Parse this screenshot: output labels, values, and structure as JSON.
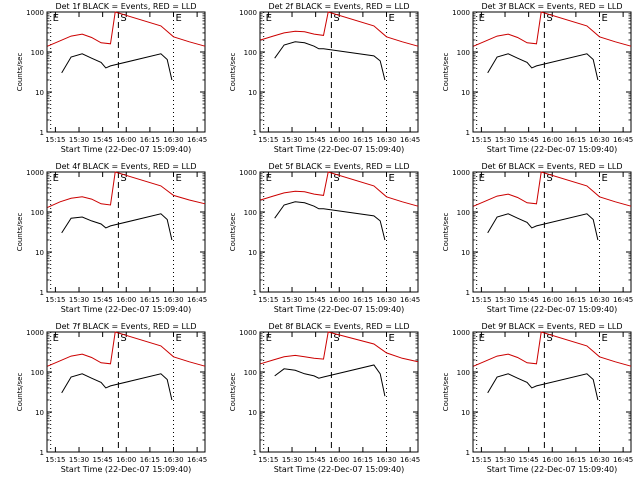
{
  "figure": {
    "start_time_label": "Start Time (22-Dec-07 15:09:40)",
    "ylabel": "Counts/sec",
    "ytick_labels": [
      "1",
      "10",
      "100",
      "1000"
    ],
    "xtick_labels": [
      "15:15",
      "15:30",
      "15:45",
      "16:00",
      "16:15",
      "16:30",
      "16:45"
    ],
    "marker_labels": [
      "E",
      "S",
      "E"
    ],
    "colors": {
      "events": "#000000",
      "lld": "#cc0000",
      "axis": "#000000",
      "background": "#ffffff"
    }
  },
  "chart_data": [
    {
      "type": "line",
      "title": "Det 1f BLACK = Events, RED = LLD",
      "xlabel": "Start Time (22-Dec-07 15:09:40)",
      "ylabel": "Counts/sec",
      "yscale": "log",
      "ylim": [
        1,
        1000
      ],
      "xlim": [
        "15:09:40",
        "16:50"
      ],
      "xticks": [
        "15:15",
        "15:30",
        "15:45",
        "16:00",
        "16:15",
        "16:30",
        "16:45"
      ],
      "markers": [
        {
          "time": "15:12",
          "label": "E",
          "style": "dotted"
        },
        {
          "time": "15:55",
          "label": "S",
          "style": "dashed"
        },
        {
          "time": "16:30",
          "label": "E",
          "style": "dotted"
        }
      ],
      "series": [
        {
          "name": "Events",
          "color": "#000000",
          "x": [
            "15:19",
            "15:25",
            "15:32",
            "15:38",
            "15:44",
            "15:47",
            "15:50",
            "16:22",
            "16:26",
            "16:29"
          ],
          "y": [
            30,
            75,
            90,
            70,
            55,
            40,
            45,
            90,
            65,
            20
          ]
        },
        {
          "name": "LLD",
          "color": "#cc0000",
          "x": [
            "15:10",
            "15:18",
            "15:25",
            "15:32",
            "15:38",
            "15:44",
            "15:50",
            "15:53",
            "16:22",
            "16:30",
            "16:40",
            "16:50"
          ],
          "y": [
            140,
            190,
            250,
            280,
            230,
            170,
            160,
            1000,
            450,
            240,
            180,
            140
          ]
        }
      ]
    },
    {
      "type": "line",
      "title": "Det 2f BLACK = Events, RED = LLD",
      "xlabel": "Start Time (22-Dec-07 15:09:40)",
      "ylabel": "Counts/sec",
      "yscale": "log",
      "ylim": [
        1,
        1000
      ],
      "xlim": [
        "15:09:40",
        "16:50"
      ],
      "xticks": [
        "15:15",
        "15:30",
        "15:45",
        "16:00",
        "16:15",
        "16:30",
        "16:45"
      ],
      "markers": [
        {
          "time": "15:12",
          "label": "E",
          "style": "dotted"
        },
        {
          "time": "15:55",
          "label": "S",
          "style": "dashed"
        },
        {
          "time": "16:30",
          "label": "E",
          "style": "dotted"
        }
      ],
      "series": [
        {
          "name": "Events",
          "color": "#000000",
          "x": [
            "15:19",
            "15:25",
            "15:32",
            "15:38",
            "15:44",
            "15:47",
            "15:50",
            "16:22",
            "16:26",
            "16:29"
          ],
          "y": [
            70,
            150,
            180,
            170,
            140,
            120,
            120,
            80,
            60,
            20
          ]
        },
        {
          "name": "LLD",
          "color": "#cc0000",
          "x": [
            "15:10",
            "15:18",
            "15:25",
            "15:32",
            "15:38",
            "15:44",
            "15:50",
            "15:53",
            "16:22",
            "16:30",
            "16:40",
            "16:50"
          ],
          "y": [
            200,
            250,
            300,
            330,
            320,
            280,
            260,
            1000,
            450,
            240,
            180,
            140
          ]
        }
      ]
    },
    {
      "type": "line",
      "title": "Det 3f BLACK = Events, RED = LLD",
      "xlabel": "Start Time (22-Dec-07 15:09:40)",
      "ylabel": "Counts/sec",
      "yscale": "log",
      "ylim": [
        1,
        1000
      ],
      "xlim": [
        "15:09:40",
        "16:50"
      ],
      "xticks": [
        "15:15",
        "15:30",
        "15:45",
        "16:00",
        "16:15",
        "16:30",
        "16:45"
      ],
      "markers": [
        {
          "time": "15:12",
          "label": "E",
          "style": "dotted"
        },
        {
          "time": "15:55",
          "label": "S",
          "style": "dashed"
        },
        {
          "time": "16:30",
          "label": "E",
          "style": "dotted"
        }
      ],
      "series": [
        {
          "name": "Events",
          "color": "#000000",
          "x": [
            "15:19",
            "15:25",
            "15:32",
            "15:38",
            "15:44",
            "15:47",
            "15:50",
            "16:22",
            "16:26",
            "16:29"
          ],
          "y": [
            30,
            75,
            90,
            70,
            55,
            40,
            45,
            90,
            65,
            20
          ]
        },
        {
          "name": "LLD",
          "color": "#cc0000",
          "x": [
            "15:10",
            "15:18",
            "15:25",
            "15:32",
            "15:38",
            "15:44",
            "15:50",
            "15:53",
            "16:22",
            "16:30",
            "16:40",
            "16:50"
          ],
          "y": [
            140,
            190,
            250,
            280,
            230,
            170,
            160,
            1000,
            450,
            240,
            180,
            140
          ]
        }
      ]
    },
    {
      "type": "line",
      "title": "Det 4f BLACK = Events, RED = LLD",
      "xlabel": "Start Time (22-Dec-07 15:09:40)",
      "ylabel": "Counts/sec",
      "yscale": "log",
      "ylim": [
        1,
        1000
      ],
      "xlim": [
        "15:09:40",
        "16:50"
      ],
      "xticks": [
        "15:15",
        "15:30",
        "15:45",
        "16:00",
        "16:15",
        "16:30",
        "16:45"
      ],
      "markers": [
        {
          "time": "15:12",
          "label": "E",
          "style": "dotted"
        },
        {
          "time": "15:55",
          "label": "S",
          "style": "dashed"
        },
        {
          "time": "16:30",
          "label": "E",
          "style": "dotted"
        }
      ],
      "series": [
        {
          "name": "Events",
          "color": "#000000",
          "x": [
            "15:19",
            "15:25",
            "15:32",
            "15:38",
            "15:44",
            "15:47",
            "15:50",
            "16:22",
            "16:26",
            "16:29"
          ],
          "y": [
            30,
            70,
            75,
            60,
            50,
            40,
            45,
            90,
            65,
            20
          ]
        },
        {
          "name": "LLD",
          "color": "#cc0000",
          "x": [
            "15:10",
            "15:18",
            "15:25",
            "15:32",
            "15:38",
            "15:44",
            "15:50",
            "15:53",
            "16:22",
            "16:30",
            "16:40",
            "16:50"
          ],
          "y": [
            130,
            180,
            220,
            240,
            210,
            160,
            150,
            1000,
            450,
            260,
            200,
            160
          ]
        }
      ]
    },
    {
      "type": "line",
      "title": "Det 5f BLACK = Events, RED = LLD",
      "xlabel": "Start Time (22-Dec-07 15:09:40)",
      "ylabel": "Counts/sec",
      "yscale": "log",
      "ylim": [
        1,
        1000
      ],
      "xlim": [
        "15:09:40",
        "16:50"
      ],
      "xticks": [
        "15:15",
        "15:30",
        "15:45",
        "16:00",
        "16:15",
        "16:30",
        "16:45"
      ],
      "markers": [
        {
          "time": "15:12",
          "label": "E",
          "style": "dotted"
        },
        {
          "time": "15:55",
          "label": "S",
          "style": "dashed"
        },
        {
          "time": "16:30",
          "label": "E",
          "style": "dotted"
        }
      ],
      "series": [
        {
          "name": "Events",
          "color": "#000000",
          "x": [
            "15:19",
            "15:25",
            "15:32",
            "15:38",
            "15:44",
            "15:47",
            "15:50",
            "16:22",
            "16:26",
            "16:29"
          ],
          "y": [
            70,
            150,
            180,
            170,
            140,
            120,
            120,
            80,
            60,
            20
          ]
        },
        {
          "name": "LLD",
          "color": "#cc0000",
          "x": [
            "15:10",
            "15:18",
            "15:25",
            "15:32",
            "15:38",
            "15:44",
            "15:50",
            "15:53",
            "16:22",
            "16:30",
            "16:40",
            "16:50"
          ],
          "y": [
            200,
            250,
            300,
            330,
            320,
            280,
            260,
            1000,
            450,
            240,
            180,
            140
          ]
        }
      ]
    },
    {
      "type": "line",
      "title": "Det 6f BLACK = Events, RED = LLD",
      "xlabel": "Start Time (22-Dec-07 15:09:40)",
      "ylabel": "Counts/sec",
      "yscale": "log",
      "ylim": [
        1,
        1000
      ],
      "xlim": [
        "15:09:40",
        "16:50"
      ],
      "xticks": [
        "15:15",
        "15:30",
        "15:45",
        "16:00",
        "16:15",
        "16:30",
        "16:45"
      ],
      "markers": [
        {
          "time": "15:12",
          "label": "E",
          "style": "dotted"
        },
        {
          "time": "15:55",
          "label": "S",
          "style": "dashed"
        },
        {
          "time": "16:30",
          "label": "E",
          "style": "dotted"
        }
      ],
      "series": [
        {
          "name": "Events",
          "color": "#000000",
          "x": [
            "15:19",
            "15:25",
            "15:32",
            "15:38",
            "15:44",
            "15:47",
            "15:50",
            "16:22",
            "16:26",
            "16:29"
          ],
          "y": [
            30,
            75,
            90,
            70,
            55,
            40,
            45,
            90,
            65,
            20
          ]
        },
        {
          "name": "LLD",
          "color": "#cc0000",
          "x": [
            "15:10",
            "15:18",
            "15:25",
            "15:32",
            "15:38",
            "15:44",
            "15:50",
            "15:53",
            "16:22",
            "16:30",
            "16:40",
            "16:50"
          ],
          "y": [
            140,
            190,
            250,
            280,
            230,
            170,
            160,
            1000,
            450,
            240,
            180,
            140
          ]
        }
      ]
    },
    {
      "type": "line",
      "title": "Det 7f BLACK = Events, RED = LLD",
      "xlabel": "Start Time (22-Dec-07 15:09:40)",
      "ylabel": "Counts/sec",
      "yscale": "log",
      "ylim": [
        1,
        1000
      ],
      "xlim": [
        "15:09:40",
        "16:50"
      ],
      "xticks": [
        "15:15",
        "15:30",
        "15:45",
        "16:00",
        "16:15",
        "16:30",
        "16:45"
      ],
      "markers": [
        {
          "time": "15:12",
          "label": "E",
          "style": "dotted"
        },
        {
          "time": "15:55",
          "label": "S",
          "style": "dashed"
        },
        {
          "time": "16:30",
          "label": "E",
          "style": "dotted"
        }
      ],
      "series": [
        {
          "name": "Events",
          "color": "#000000",
          "x": [
            "15:19",
            "15:25",
            "15:32",
            "15:38",
            "15:44",
            "15:47",
            "15:50",
            "16:22",
            "16:26",
            "16:29"
          ],
          "y": [
            30,
            75,
            90,
            70,
            55,
            40,
            45,
            90,
            65,
            20
          ]
        },
        {
          "name": "LLD",
          "color": "#cc0000",
          "x": [
            "15:10",
            "15:18",
            "15:25",
            "15:32",
            "15:38",
            "15:44",
            "15:50",
            "15:53",
            "16:22",
            "16:30",
            "16:40",
            "16:50"
          ],
          "y": [
            140,
            190,
            250,
            280,
            230,
            170,
            160,
            1000,
            450,
            240,
            180,
            140
          ]
        }
      ]
    },
    {
      "type": "line",
      "title": "Det 8f BLACK = Events, RED = LLD",
      "xlabel": "Start Time (22-Dec-07 15:09:40)",
      "ylabel": "Counts/sec",
      "yscale": "log",
      "ylim": [
        1,
        1000
      ],
      "xlim": [
        "15:09:40",
        "16:50"
      ],
      "xticks": [
        "15:15",
        "15:30",
        "15:45",
        "16:00",
        "16:15",
        "16:30",
        "16:45"
      ],
      "markers": [
        {
          "time": "15:12",
          "label": "E",
          "style": "dotted"
        },
        {
          "time": "15:55",
          "label": "S",
          "style": "dashed"
        },
        {
          "time": "16:30",
          "label": "E",
          "style": "dotted"
        }
      ],
      "series": [
        {
          "name": "Events",
          "color": "#000000",
          "x": [
            "15:19",
            "15:25",
            "15:32",
            "15:38",
            "15:44",
            "15:47",
            "15:50",
            "16:22",
            "16:26",
            "16:29"
          ],
          "y": [
            80,
            120,
            110,
            90,
            80,
            70,
            75,
            150,
            90,
            25
          ]
        },
        {
          "name": "LLD",
          "color": "#cc0000",
          "x": [
            "15:10",
            "15:18",
            "15:25",
            "15:32",
            "15:38",
            "15:44",
            "15:50",
            "15:53",
            "16:22",
            "16:30",
            "16:40",
            "16:50"
          ],
          "y": [
            160,
            200,
            240,
            260,
            240,
            220,
            210,
            1000,
            500,
            300,
            220,
            180
          ]
        }
      ]
    },
    {
      "type": "line",
      "title": "Det 9f BLACK = Events, RED = LLD",
      "xlabel": "Start Time (22-Dec-07 15:09:40)",
      "ylabel": "Counts/sec",
      "yscale": "log",
      "ylim": [
        1,
        1000
      ],
      "xlim": [
        "15:09:40",
        "16:50"
      ],
      "xticks": [
        "15:15",
        "15:30",
        "15:45",
        "16:00",
        "16:15",
        "16:30",
        "16:45"
      ],
      "markers": [
        {
          "time": "15:12",
          "label": "E",
          "style": "dotted"
        },
        {
          "time": "15:55",
          "label": "S",
          "style": "dashed"
        },
        {
          "time": "16:30",
          "label": "E",
          "style": "dotted"
        }
      ],
      "series": [
        {
          "name": "Events",
          "color": "#000000",
          "x": [
            "15:19",
            "15:25",
            "15:32",
            "15:38",
            "15:44",
            "15:47",
            "15:50",
            "16:22",
            "16:26",
            "16:29"
          ],
          "y": [
            30,
            75,
            90,
            70,
            55,
            40,
            45,
            90,
            65,
            20
          ]
        },
        {
          "name": "LLD",
          "color": "#cc0000",
          "x": [
            "15:10",
            "15:18",
            "15:25",
            "15:32",
            "15:38",
            "15:44",
            "15:50",
            "15:53",
            "16:22",
            "16:30",
            "16:40",
            "16:50"
          ],
          "y": [
            140,
            190,
            250,
            280,
            230,
            170,
            160,
            1000,
            450,
            240,
            180,
            140
          ]
        }
      ]
    }
  ]
}
